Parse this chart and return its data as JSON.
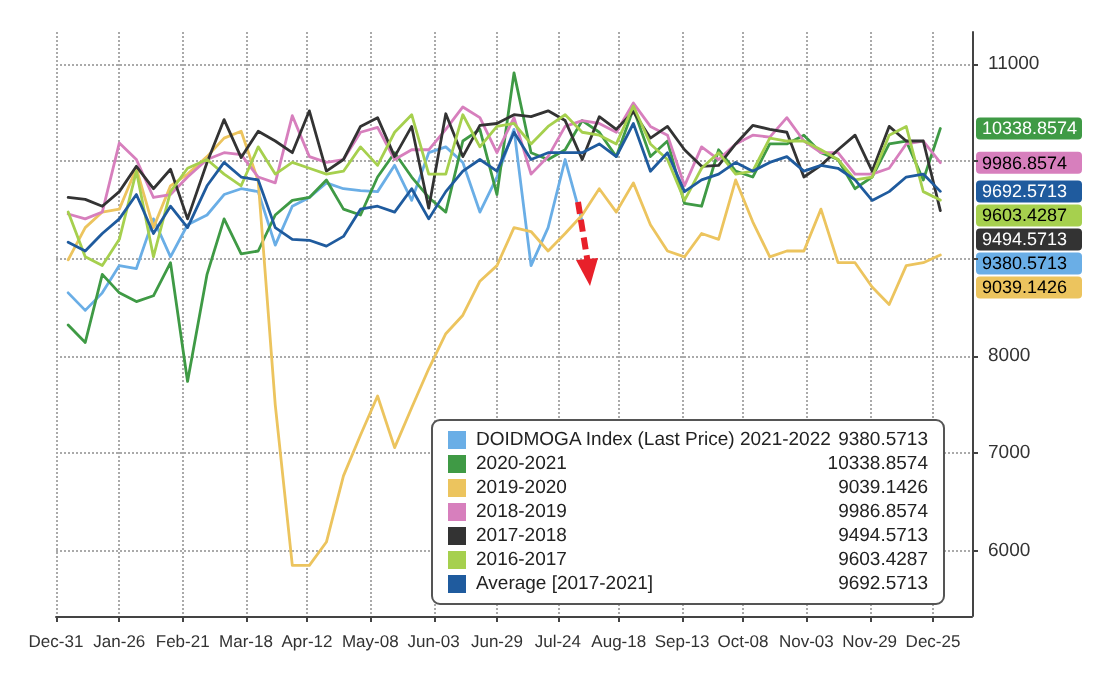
{
  "chart_data": {
    "type": "line",
    "x": [
      "2020-01-05",
      "2020-01-12",
      "2020-01-19",
      "2020-01-26",
      "2020-02-02",
      "2020-02-09",
      "2020-02-16",
      "2020-02-23",
      "2020-03-02",
      "2020-03-09",
      "2020-03-16",
      "2020-03-23",
      "2020-03-30",
      "2020-04-06",
      "2020-04-13",
      "2020-04-20",
      "2020-04-27",
      "2020-05-04",
      "2020-05-11",
      "2020-05-18",
      "2020-05-25",
      "2020-06-01",
      "2020-06-08",
      "2020-06-15",
      "2020-06-22",
      "2020-06-29",
      "2020-07-06",
      "2020-07-13",
      "2020-07-20",
      "2020-07-27",
      "2020-08-03",
      "2020-08-10",
      "2020-08-17",
      "2020-08-24",
      "2020-08-31",
      "2020-09-07",
      "2020-09-14",
      "2020-09-21",
      "2020-09-28",
      "2020-10-05",
      "2020-10-12",
      "2020-10-19",
      "2020-10-26",
      "2020-11-02",
      "2020-11-09",
      "2020-11-16",
      "2020-11-23",
      "2020-11-30",
      "2020-12-07",
      "2020-12-14",
      "2020-12-21",
      "2020-12-28"
    ],
    "series": [
      {
        "name": "DOIDMOGA Index (Last Price) 2021-2022",
        "color": "#6aaee6",
        "values": [
          8650,
          8470,
          8650,
          8930,
          8900,
          9410,
          9020,
          9350,
          9450,
          9660,
          9720,
          9690,
          9140,
          9540,
          9630,
          9780,
          9720,
          9700,
          9690,
          9960,
          9600,
          10090,
          10150,
          9990,
          9480,
          9840,
          10330,
          8930,
          9320,
          10020,
          9380.5713,
          null,
          null,
          null,
          null,
          null,
          null,
          null,
          null,
          null,
          null,
          null,
          null,
          null,
          null,
          null,
          null,
          null,
          null,
          null,
          null,
          null
        ]
      },
      {
        "name": "2020-2021",
        "color": "#3f9a45",
        "values": [
          8320,
          8140,
          8840,
          8650,
          8560,
          8620,
          8960,
          7740,
          8840,
          9410,
          9050,
          9080,
          9450,
          9600,
          9630,
          9810,
          9510,
          9450,
          9840,
          10090,
          9840,
          9630,
          9480,
          10210,
          10330,
          9660,
          10910,
          10090,
          10020,
          10120,
          10420,
          10300,
          10050,
          10540,
          10050,
          10210,
          9570,
          9540,
          10120,
          9900,
          9840,
          10180,
          10180,
          10270,
          10090,
          10020,
          9720,
          9840,
          10180,
          10210,
          9810,
          10338.8574
        ]
      },
      {
        "name": "2019-2020",
        "color": "#ecc45e",
        "values": [
          8990,
          9320,
          9480,
          9510,
          9930,
          9320,
          9750,
          9870,
          10050,
          10240,
          10310,
          9800,
          7500,
          5850,
          5850,
          6090,
          6770,
          7190,
          7590,
          7060,
          7470,
          7870,
          8230,
          8420,
          8770,
          8930,
          9320,
          9280,
          9080,
          9260,
          9450,
          9720,
          9480,
          9780,
          9350,
          9080,
          9020,
          9260,
          9200,
          9810,
          9380,
          9020,
          9080,
          9080,
          9510,
          8960,
          8960,
          8710,
          8530,
          8930,
          8960,
          9039.1426
        ]
      },
      {
        "name": "2018-2019",
        "color": "#d77fbd",
        "values": [
          9460,
          9410,
          9480,
          10190,
          10020,
          9630,
          9660,
          9840,
          10020,
          10090,
          10070,
          9840,
          9780,
          10470,
          10050,
          9990,
          10020,
          10300,
          10350,
          10020,
          10120,
          10120,
          10330,
          10560,
          10450,
          10090,
          10450,
          9870,
          10050,
          10360,
          10420,
          10390,
          10300,
          10600,
          10360,
          10270,
          9750,
          10150,
          10020,
          10180,
          10270,
          10250,
          10450,
          10210,
          10090,
          10090,
          9870,
          9870,
          9930,
          10180,
          10210,
          9986.8574
        ]
      },
      {
        "name": "2017-2018",
        "color": "#333333",
        "values": [
          9630,
          9610,
          9540,
          9690,
          9950,
          9720,
          9920,
          9410,
          9990,
          10430,
          10040,
          10310,
          10210,
          10090,
          10520,
          9900,
          10020,
          10360,
          10450,
          10050,
          10360,
          9520,
          10490,
          10050,
          10370,
          10390,
          10480,
          10460,
          10520,
          10420,
          10020,
          10460,
          10330,
          10510,
          10240,
          10360,
          10120,
          9950,
          9960,
          10180,
          10370,
          10330,
          10300,
          9840,
          9960,
          10120,
          10270,
          9900,
          10360,
          10210,
          10210,
          9494.5713
        ]
      },
      {
        "name": "2016-2017",
        "color": "#a6d04e",
        "values": [
          9480,
          9020,
          8930,
          9200,
          9900,
          9020,
          9690,
          9930,
          10020,
          9870,
          9750,
          10150,
          9870,
          9990,
          9930,
          9870,
          9900,
          10150,
          9960,
          10300,
          10480,
          9870,
          9870,
          10480,
          10150,
          10360,
          10390,
          10180,
          10360,
          10480,
          10300,
          10270,
          10180,
          10570,
          10180,
          10020,
          9600,
          9930,
          10090,
          9870,
          9900,
          10240,
          10210,
          10210,
          10120,
          10020,
          9810,
          9840,
          10270,
          10360,
          9690,
          9603.4287
        ]
      },
      {
        "name": "Average [2017-2021]",
        "color": "#1f5b9e",
        "values": [
          9170,
          9080,
          9260,
          9410,
          9660,
          9260,
          9540,
          9320,
          9750,
          9990,
          9840,
          9810,
          9320,
          9200,
          9190,
          9130,
          9230,
          9510,
          9540,
          9480,
          9720,
          9410,
          9690,
          9900,
          10020,
          9900,
          10300,
          10020,
          10090,
          10090,
          10090,
          10180,
          10050,
          10390,
          9900,
          10090,
          9690,
          9810,
          9870,
          9990,
          9900,
          9990,
          10050,
          9900,
          9960,
          9930,
          9810,
          9600,
          9690,
          9840,
          9870,
          9692.5713
        ]
      }
    ],
    "annotations": [
      "9380.5713",
      "10338.8574",
      "9039.1426",
      "9986.8574",
      "9494.5713",
      "9603.4287",
      "9692.5713"
    ],
    "xlim": [
      "2019-12-31",
      "2021-01-10"
    ],
    "xticks": [
      {
        "value": "2019-12-31",
        "label": "Dec-31"
      },
      {
        "value": "2020-01-26",
        "label": "Jan-26"
      },
      {
        "value": "2020-02-21",
        "label": "Feb-21"
      },
      {
        "value": "2020-03-18",
        "label": "Mar-18"
      },
      {
        "value": "2020-04-12",
        "label": "Apr-12"
      },
      {
        "value": "2020-05-08",
        "label": "May-08"
      },
      {
        "value": "2020-06-03",
        "label": "Jun-03"
      },
      {
        "value": "2020-06-29",
        "label": "Jun-29"
      },
      {
        "value": "2020-07-24",
        "label": "Jul-24"
      },
      {
        "value": "2020-08-18",
        "label": "Aug-18"
      },
      {
        "value": "2020-09-13",
        "label": "Sep-13"
      },
      {
        "value": "2020-10-08",
        "label": "Oct-08"
      },
      {
        "value": "2020-11-03",
        "label": "Nov-03"
      },
      {
        "value": "2020-11-29",
        "label": "Nov-29"
      },
      {
        "value": "2020-12-25",
        "label": "Dec-25"
      }
    ],
    "ylim": [
      5330,
      11330
    ],
    "yticks": [
      6000,
      7000,
      8000,
      {
        "value": 9000,
        "label": null
      },
      {
        "value": 10000,
        "label": null
      },
      11000
    ],
    "grid": true,
    "legend": "bottom right",
    "marker": "none"
  }
}
